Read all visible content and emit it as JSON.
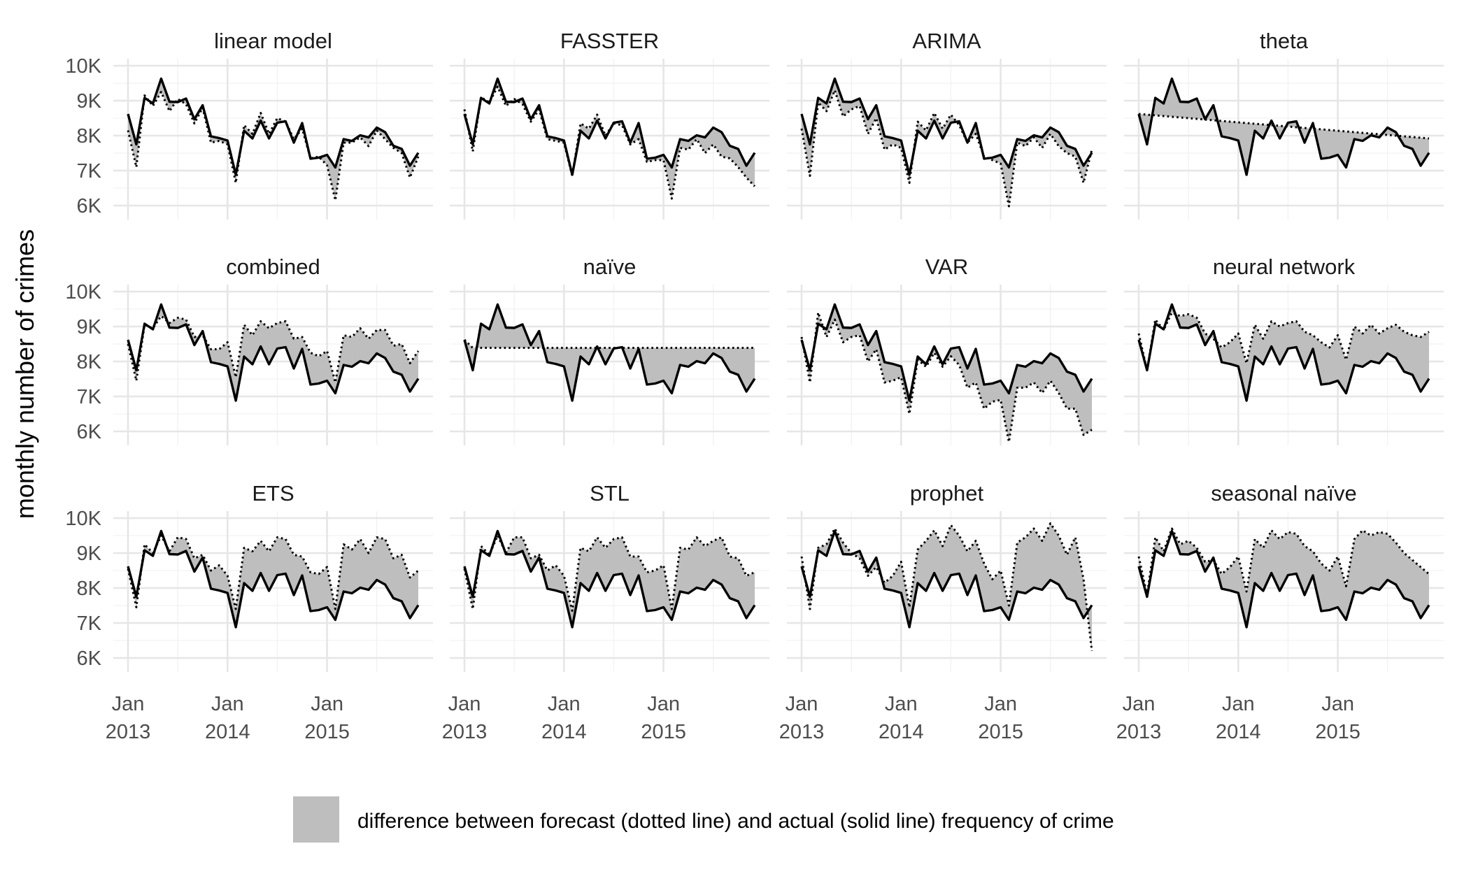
{
  "chart_data": {
    "type": "line",
    "facets": [
      "linear model",
      "FASSTER",
      "ARIMA",
      "theta",
      "combined",
      "naïve",
      "VAR",
      "neural network",
      "ETS",
      "STL",
      "prophet",
      "seasonal naïve"
    ],
    "ylabel": "monthly number of crimes",
    "xlabel": "",
    "y_ticks": [
      "10K",
      "9K",
      "8K",
      "7K",
      "6K"
    ],
    "y_tick_values": [
      10000,
      9000,
      8000,
      7000,
      6000
    ],
    "x_ticks": [
      "Jan\n2013",
      "Jan\n2014",
      "Jan\n2015"
    ],
    "x_tick_values": [
      "2013-01",
      "2014-01",
      "2015-01"
    ],
    "grid": true,
    "legend": {
      "position": "bottom",
      "label": "difference between forecast (dotted line) and actual (solid line) frequency of crime",
      "fill": "#bebebe"
    },
    "months": [
      "2013-01",
      "2013-02",
      "2013-03",
      "2013-04",
      "2013-05",
      "2013-06",
      "2013-07",
      "2013-08",
      "2013-09",
      "2013-10",
      "2013-11",
      "2013-12",
      "2014-01",
      "2014-02",
      "2014-03",
      "2014-04",
      "2014-05",
      "2014-06",
      "2014-07",
      "2014-08",
      "2014-09",
      "2014-10",
      "2014-11",
      "2014-12",
      "2015-01",
      "2015-02",
      "2015-03",
      "2015-04",
      "2015-05",
      "2015-06",
      "2015-07",
      "2015-08",
      "2015-09",
      "2015-10",
      "2015-11",
      "2015-12"
    ],
    "actual": {
      "name": "actual",
      "values": [
        8620,
        7750,
        9080,
        8920,
        9630,
        8970,
        8960,
        9060,
        8470,
        8870,
        7980,
        7930,
        7860,
        6880,
        8140,
        7920,
        8430,
        7920,
        8370,
        8410,
        7800,
        8360,
        7340,
        7370,
        7450,
        7090,
        7900,
        7850,
        8010,
        7950,
        8230,
        8100,
        7710,
        7620,
        7140,
        7510
      ]
    },
    "forecasts": [
      {
        "facet": "linear model",
        "values": [
          8150,
          7100,
          9150,
          8850,
          9250,
          8700,
          9050,
          8900,
          8350,
          8800,
          7800,
          7850,
          7750,
          6650,
          8300,
          8050,
          8650,
          8050,
          8500,
          8400,
          7900,
          8200,
          7350,
          7400,
          7150,
          6150,
          7800,
          7800,
          7950,
          7700,
          8150,
          7900,
          7650,
          7500,
          6800,
          7400
        ]
      },
      {
        "facet": "FASSTER",
        "values": [
          8750,
          7550,
          9100,
          8950,
          9400,
          8850,
          9050,
          8900,
          8400,
          8750,
          7900,
          7850,
          7800,
          6850,
          8350,
          8200,
          8600,
          8000,
          8350,
          8300,
          7750,
          7900,
          7250,
          7300,
          7300,
          6200,
          7650,
          7600,
          7900,
          7500,
          7750,
          7400,
          7350,
          7100,
          6800,
          6550
        ]
      },
      {
        "facet": "ARIMA",
        "values": [
          8200,
          6850,
          8950,
          8700,
          9300,
          8550,
          8750,
          8850,
          8050,
          8500,
          7600,
          7750,
          7650,
          6650,
          8400,
          8150,
          8650,
          8200,
          8600,
          8300,
          7800,
          8050,
          7400,
          7300,
          7200,
          5980,
          7800,
          7700,
          7950,
          7650,
          8050,
          7700,
          7500,
          7400,
          6650,
          7600
        ]
      },
      {
        "facet": "theta",
        "values": [
          8620,
          8600,
          8580,
          8560,
          8540,
          8520,
          8500,
          8480,
          8460,
          8440,
          8420,
          8400,
          8380,
          8360,
          8340,
          8320,
          8300,
          8280,
          8260,
          8240,
          8220,
          8200,
          8180,
          8160,
          8140,
          8120,
          8100,
          8080,
          8060,
          8040,
          8020,
          8000,
          7980,
          7960,
          7940,
          7920
        ]
      },
      {
        "facet": "combined",
        "values": [
          8500,
          7450,
          9050,
          8950,
          9300,
          9100,
          9250,
          9200,
          8700,
          8750,
          8350,
          8350,
          8550,
          7550,
          9050,
          8750,
          9150,
          8950,
          9100,
          9150,
          8650,
          8700,
          8250,
          8150,
          8300,
          7400,
          8750,
          8700,
          8950,
          8650,
          8900,
          8900,
          8450,
          8500,
          7950,
          8300
        ]
      },
      {
        "facet": "naïve",
        "values": [
          8620,
          8390,
          8390,
          8390,
          8390,
          8390,
          8390,
          8390,
          8390,
          8390,
          8390,
          8390,
          8390,
          8390,
          8390,
          8390,
          8390,
          8390,
          8390,
          8390,
          8390,
          8390,
          8390,
          8390,
          8390,
          8390,
          8390,
          8390,
          8390,
          8390,
          8390,
          8390,
          8390,
          8390,
          8390,
          8390
        ]
      },
      {
        "facet": "VAR",
        "values": [
          8700,
          7400,
          9400,
          8700,
          9200,
          8550,
          8700,
          8750,
          8000,
          8350,
          7400,
          7450,
          7550,
          6500,
          8050,
          7850,
          8250,
          7850,
          8150,
          7900,
          7250,
          7400,
          6650,
          6850,
          6900,
          5700,
          7250,
          7250,
          7400,
          7100,
          7450,
          7100,
          6650,
          6650,
          5900,
          6050
        ]
      },
      {
        "facet": "neural network",
        "values": [
          8800,
          7750,
          9200,
          8900,
          9400,
          9300,
          9350,
          9250,
          8800,
          8650,
          8400,
          8550,
          8800,
          7950,
          9050,
          8650,
          9150,
          9000,
          9100,
          9150,
          8850,
          8750,
          8550,
          8400,
          8750,
          8050,
          9000,
          8800,
          9050,
          8800,
          8950,
          9050,
          8850,
          8750,
          8700,
          8850
        ]
      },
      {
        "facet": "ETS",
        "values": [
          8550,
          7450,
          9250,
          9000,
          9500,
          9050,
          9450,
          9400,
          8850,
          8950,
          8500,
          8650,
          8350,
          7400,
          9150,
          9050,
          9350,
          9050,
          9450,
          9400,
          8950,
          8900,
          8450,
          8400,
          8600,
          7400,
          9250,
          9100,
          9400,
          9000,
          9450,
          9400,
          8850,
          8950,
          8300,
          8500
        ]
      },
      {
        "facet": "STL",
        "values": [
          8550,
          7400,
          9200,
          8950,
          9500,
          9000,
          9450,
          9450,
          8850,
          8950,
          8500,
          8650,
          8350,
          7350,
          9150,
          9050,
          9450,
          9150,
          9400,
          9450,
          8900,
          8900,
          8450,
          8500,
          8650,
          7400,
          9150,
          9100,
          9450,
          9200,
          9350,
          9450,
          8900,
          8850,
          8350,
          8450
        ]
      },
      {
        "facet": "prophet",
        "values": [
          8900,
          7400,
          9150,
          9250,
          9700,
          9300,
          9000,
          8850,
          8350,
          8600,
          8150,
          8350,
          8750,
          7450,
          9100,
          9350,
          9650,
          9200,
          9800,
          9500,
          9050,
          9350,
          8700,
          8250,
          8500,
          7500,
          9300,
          9450,
          9700,
          9350,
          9850,
          9500,
          8950,
          9450,
          8250,
          6200
        ]
      },
      {
        "facet": "seasonal naïve",
        "values": [
          8900,
          7800,
          9450,
          9050,
          9700,
          9250,
          9350,
          9150,
          8750,
          8800,
          8400,
          8600,
          8900,
          7900,
          9400,
          9150,
          9650,
          9400,
          9600,
          9550,
          9200,
          9050,
          8700,
          8500,
          8900,
          8050,
          9400,
          9650,
          9500,
          9600,
          9550,
          9300,
          9000,
          8800,
          8600,
          8400
        ]
      }
    ]
  }
}
